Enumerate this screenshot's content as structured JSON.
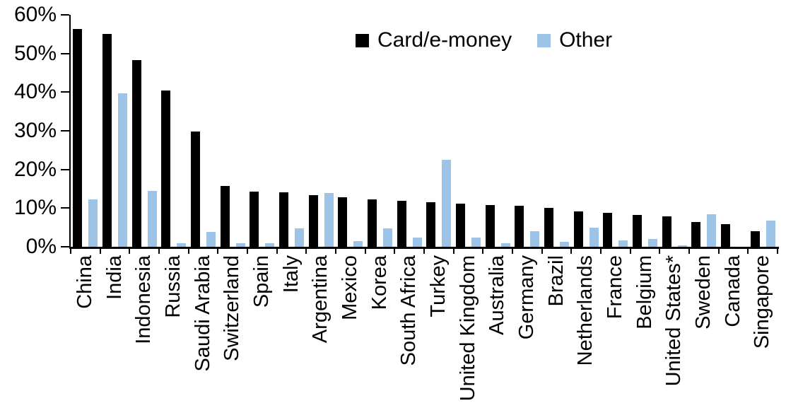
{
  "chart_data": {
    "type": "bar",
    "title": "",
    "xlabel": "",
    "ylabel": "",
    "ylim": [
      0,
      60
    ],
    "ytick_step": 10,
    "ytick_labels": [
      "0%",
      "10%",
      "20%",
      "30%",
      "40%",
      "50%",
      "60%"
    ],
    "grid": false,
    "legend_position": "top-center",
    "categories": [
      "China",
      "India",
      "Indonesia",
      "Russia",
      "Saudi Arabia",
      "Switzerland",
      "Spain",
      "Italy",
      "Argentina",
      "Mexico",
      "Korea",
      "South Africa",
      "Turkey",
      "United Kingdom",
      "Australia",
      "Germany",
      "Brazil",
      "Netherlands",
      "France",
      "Belgium",
      "United States*",
      "Sweden",
      "Canada",
      "Singapore"
    ],
    "series": [
      {
        "name": "Card/e-money",
        "color": "#000000",
        "values": [
          56.4,
          55.1,
          48.3,
          40.5,
          29.8,
          15.7,
          14.3,
          14.1,
          13.4,
          12.9,
          12.2,
          11.9,
          11.6,
          11.1,
          10.8,
          10.7,
          10.0,
          9.2,
          8.7,
          8.2,
          7.9,
          6.5,
          5.9,
          4.0
        ]
      },
      {
        "name": "Other",
        "color": "#9DC3E6",
        "values": [
          12.3,
          39.7,
          14.5,
          1.0,
          3.9,
          0.9,
          1.0,
          4.7,
          13.9,
          1.4,
          4.7,
          2.4,
          22.6,
          2.4,
          1.0,
          4.0,
          1.2,
          5.0,
          1.7,
          2.0,
          0.4,
          8.4,
          0.0,
          6.8
        ]
      }
    ]
  }
}
